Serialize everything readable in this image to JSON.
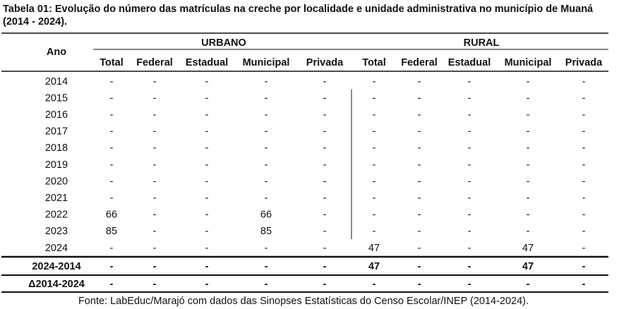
{
  "title": "Tabela 01: Evolução do número das matrículas na creche por localidade e unidade administrativa no município de Muaná (2014 - 2024).",
  "table": {
    "header": {
      "ano": "Ano",
      "groups": [
        "URBANO",
        "RURAL"
      ],
      "columns": [
        "Total",
        "Federal",
        "Estadual",
        "Municipal",
        "Privada",
        "Total",
        "Federal",
        "Estadual",
        "Municipal",
        "Privada"
      ]
    },
    "rows": [
      [
        2014,
        "-",
        "-",
        "-",
        "-",
        "-",
        "-",
        "-",
        "-",
        "-",
        "-"
      ],
      [
        2015,
        "-",
        "-",
        "-",
        "-",
        "-",
        "-",
        "-",
        "-",
        "-",
        "-"
      ],
      [
        2016,
        "-",
        "-",
        "-",
        "-",
        "-",
        "-",
        "-",
        "-",
        "-",
        "-"
      ],
      [
        2017,
        "-",
        "-",
        "-",
        "-",
        "-",
        "-",
        "-",
        "-",
        "-",
        "-"
      ],
      [
        2018,
        "-",
        "-",
        "-",
        "-",
        "-",
        "-",
        "-",
        "-",
        "-",
        "-"
      ],
      [
        2019,
        "-",
        "-",
        "-",
        "-",
        "-",
        "-",
        "-",
        "-",
        "-",
        "-"
      ],
      [
        2020,
        "-",
        "-",
        "-",
        "-",
        "-",
        "-",
        "-",
        "-",
        "-",
        "-"
      ],
      [
        2021,
        "-",
        "-",
        "-",
        "-",
        "-",
        "-",
        "-",
        "-",
        "-",
        "-"
      ],
      [
        2022,
        66,
        "-",
        "-",
        66,
        "-",
        "-",
        "-",
        "-",
        "-",
        "-"
      ],
      [
        2023,
        85,
        "-",
        "-",
        85,
        "-",
        "-",
        "-",
        "-",
        "-",
        "-"
      ],
      [
        2024,
        "-",
        "-",
        "-",
        "-",
        "-",
        47,
        "-",
        "-",
        47,
        "-"
      ]
    ],
    "summary_rows": [
      [
        "2024-2014",
        "-",
        "-",
        "-",
        "-",
        "-",
        47,
        "-",
        "-",
        47,
        "-"
      ],
      [
        "Δ2014-2024",
        "-",
        "-",
        "-",
        "-",
        "-",
        "-",
        "-",
        "-",
        "-",
        "-"
      ]
    ]
  },
  "source": "Fonte: LabEduc/Marajó com dados das Sinopses Estatísticas do Censo Escolar/INEP (2014-2024)."
}
